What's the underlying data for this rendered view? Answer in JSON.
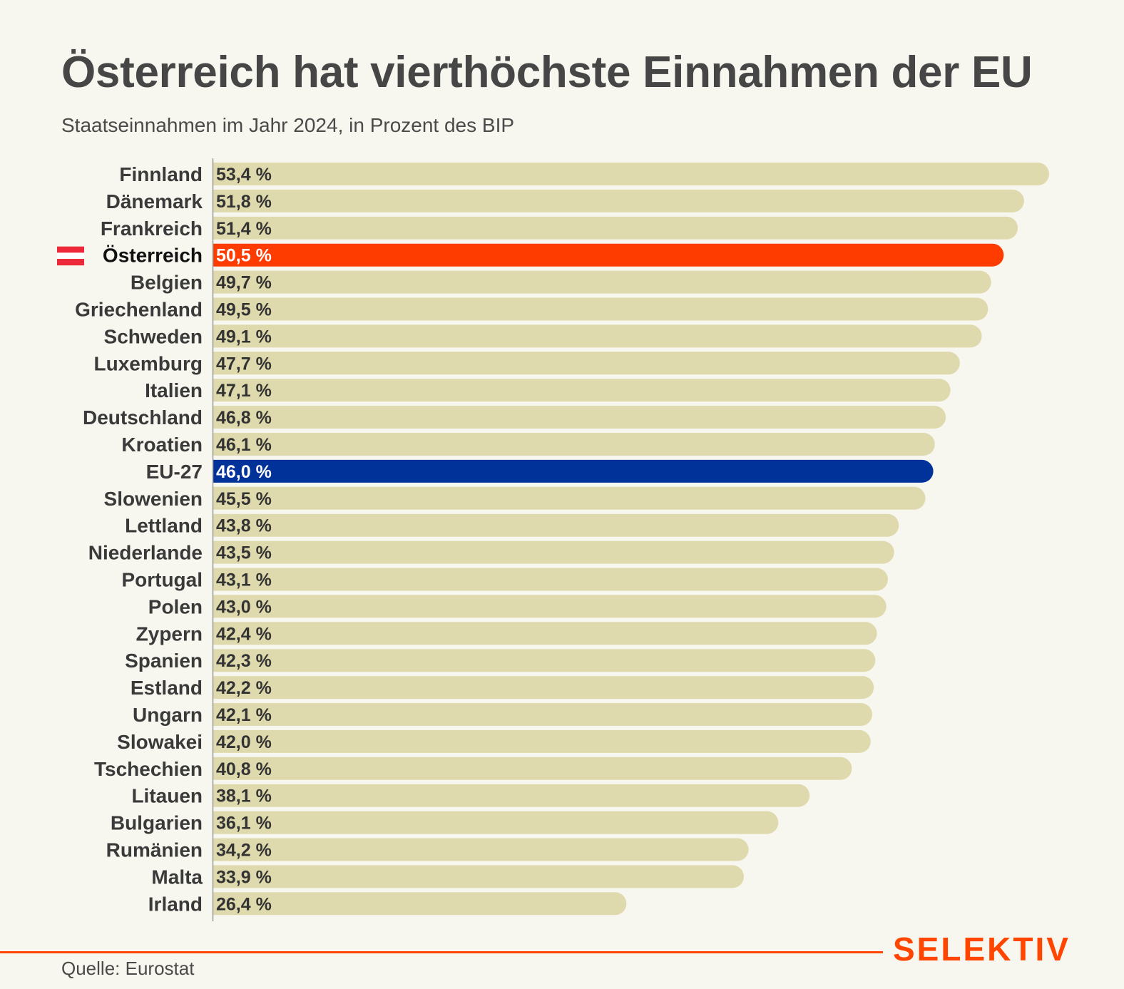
{
  "header": {
    "title": "Österreich hat vierthöchste Einnahmen der EU",
    "subtitle": "Staatseinnahmen im Jahr 2024, in Prozent des BIP"
  },
  "footer": {
    "source": "Quelle: Eurostat",
    "brand": "SELEKTIV"
  },
  "colors": {
    "default_bar": "#dfdaad",
    "highlight_bar": "#ff3c00",
    "eu_bar": "#00329a",
    "brand": "#ff4500",
    "background": "#f8f7ef"
  },
  "chart_data": {
    "type": "bar",
    "orientation": "horizontal",
    "title": "Österreich hat vierthöchste Einnahmen der EU",
    "subtitle": "Staatseinnahmen im Jahr 2024, in Prozent des BIP",
    "xlabel": "",
    "ylabel": "",
    "unit": "%",
    "xlim": [
      0,
      53.4
    ],
    "grid": false,
    "legend": "none",
    "categories": [
      "Finnland",
      "Dänemark",
      "Frankreich",
      "Österreich",
      "Belgien",
      "Griechenland",
      "Schweden",
      "Luxemburg",
      "Italien",
      "Deutschland",
      "Kroatien",
      "EU-27",
      "Slowenien",
      "Lettland",
      "Niederlande",
      "Portugal",
      "Polen",
      "Zypern",
      "Spanien",
      "Estland",
      "Ungarn",
      "Slowakei",
      "Tschechien",
      "Litauen",
      "Bulgarien",
      "Rumänien",
      "Malta",
      "Irland"
    ],
    "values": [
      53.4,
      51.8,
      51.4,
      50.5,
      49.7,
      49.5,
      49.1,
      47.7,
      47.1,
      46.8,
      46.1,
      46.0,
      45.5,
      43.8,
      43.5,
      43.1,
      43.0,
      42.4,
      42.3,
      42.2,
      42.1,
      42.0,
      40.8,
      38.1,
      36.1,
      34.2,
      33.9,
      26.4
    ],
    "value_labels": [
      "53,4 %",
      "51,8 %",
      "51,4 %",
      "50,5 %",
      "49,7 %",
      "49,5 %",
      "49,1 %",
      "47,7 %",
      "47,1 %",
      "46,8 %",
      "46,1 %",
      "46,0 %",
      "45,5 %",
      "43,8 %",
      "43,5 %",
      "43,1 %",
      "43,0 %",
      "42,4 %",
      "42,3 %",
      "42,2 %",
      "42,1 %",
      "42,0 %",
      "40,8 %",
      "38,1 %",
      "36,1 %",
      "34,2 %",
      "33,9 %",
      "26,4 %"
    ],
    "highlights": {
      "Österreich": {
        "color": "highlight_bar",
        "icon": "austria-flag-icon"
      },
      "EU-27": {
        "color": "eu_bar"
      }
    }
  }
}
